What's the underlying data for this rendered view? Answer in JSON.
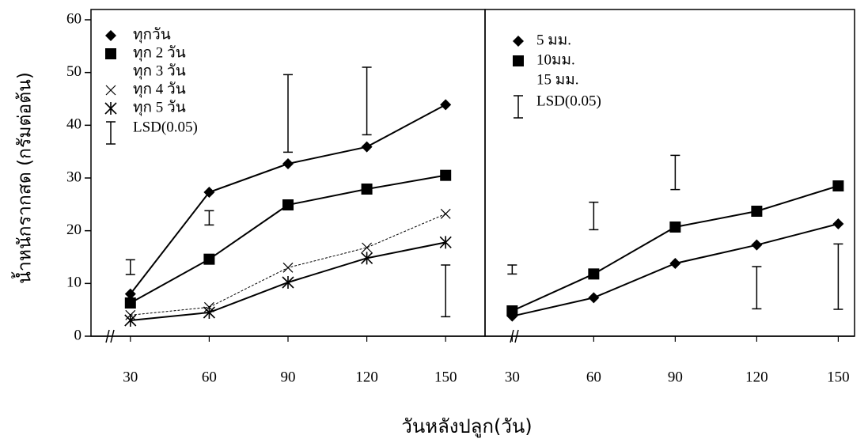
{
  "chart_data": [
    {
      "type": "line",
      "ylabel": "น้ำหนักรากสด (กรัมต่อต้น)",
      "xlabel": "วันหลังปลูก(วัน)",
      "x": [
        30,
        60,
        90,
        120,
        150
      ],
      "xlim": [
        15,
        165
      ],
      "ylim": [
        0,
        60
      ],
      "yticks": [
        0,
        10,
        20,
        30,
        40,
        50,
        60
      ],
      "series": [
        {
          "name": "ทุกวัน",
          "color": "#000000",
          "marker": "diamond",
          "values": [
            8,
            27.3,
            32.7,
            35.9,
            43.9
          ]
        },
        {
          "name": "ทุก 2 วัน",
          "color": "#000000",
          "marker": "square",
          "values": [
            6.3,
            14.6,
            24.9,
            27.9,
            30.5
          ]
        },
        {
          "name": "ทุก 3 วัน",
          "color": "#000000",
          "marker": "none",
          "values": [
            null,
            null,
            null,
            null,
            null
          ]
        },
        {
          "name": "ทุก 4 วัน",
          "color": "#000000",
          "marker": "x",
          "dashed": true,
          "values": [
            4,
            5.5,
            13,
            16.8,
            23.2
          ]
        },
        {
          "name": "ทุก 5 วัน",
          "color": "#000000",
          "marker": "asterisk",
          "values": [
            3,
            4.5,
            10.2,
            14.8,
            17.8
          ]
        }
      ],
      "lsd": {
        "name": "LSD(0.05)",
        "low": [
          11.7,
          21.1,
          34.9,
          38.2,
          3.7
        ],
        "high": [
          14.5,
          23.8,
          49.6,
          51,
          13.5
        ]
      }
    },
    {
      "type": "line",
      "x": [
        30,
        60,
        90,
        120,
        150
      ],
      "xlim": [
        20,
        156
      ],
      "ylim": [
        0,
        60
      ],
      "series": [
        {
          "name": "5 มม.",
          "color": "#000000",
          "marker": "diamond",
          "values": [
            3.8,
            7.3,
            13.8,
            17.3,
            21.3
          ]
        },
        {
          "name": "10มม.",
          "color": "#000000",
          "marker": "square",
          "values": [
            4.8,
            11.8,
            20.7,
            23.7,
            28.5
          ]
        },
        {
          "name": "15 มม.",
          "color": "#000000",
          "marker": "none",
          "values": [
            null,
            null,
            null,
            null,
            null
          ]
        }
      ],
      "lsd": {
        "name": "LSD(0.05)",
        "low": [
          11.8,
          20.2,
          27.8,
          5.2,
          5.1
        ],
        "high": [
          13.5,
          25.4,
          34.3,
          13.2,
          17.5
        ]
      }
    }
  ]
}
